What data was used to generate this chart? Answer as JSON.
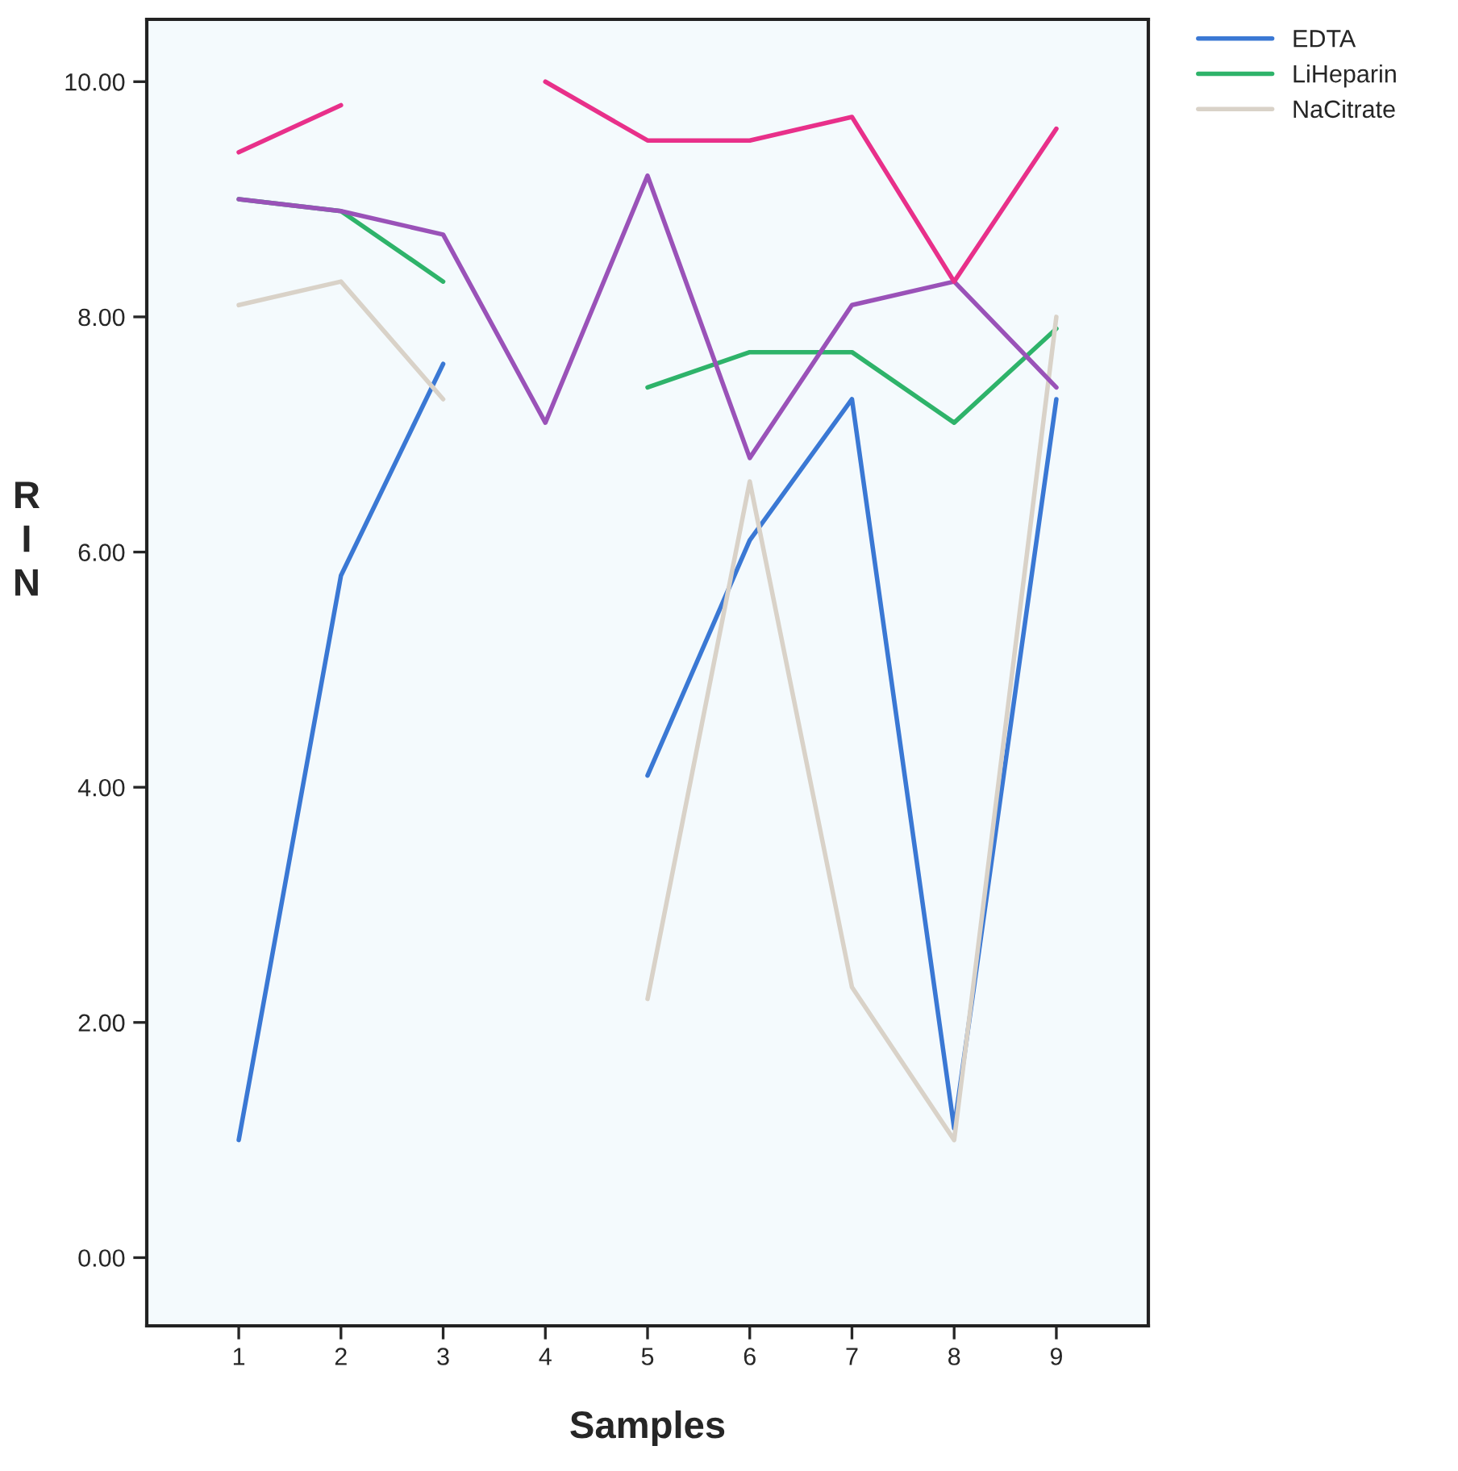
{
  "chart_data": {
    "type": "line",
    "xlabel": "Samples",
    "ylabel": "RIN",
    "categories": [
      "1",
      "2",
      "3",
      "4",
      "5",
      "6",
      "7",
      "8",
      "9"
    ],
    "series": [
      {
        "name": "EDTA",
        "color": "#3a78d4",
        "values": [
          1.0,
          5.8,
          7.6,
          null,
          4.1,
          6.1,
          7.3,
          1.1,
          7.3
        ]
      },
      {
        "name": "LiHeparin",
        "color": "#2eb36a",
        "values": [
          9.0,
          8.9,
          8.3,
          null,
          7.4,
          7.7,
          7.7,
          7.1,
          7.9
        ]
      },
      {
        "name": "NaCitrate",
        "color": "#d9d2c8",
        "values": [
          8.1,
          8.3,
          7.3,
          null,
          2.2,
          6.6,
          2.3,
          1.0,
          8.0
        ]
      },
      {
        "color": "#9a52b8",
        "values": [
          9.0,
          8.9,
          8.7,
          7.1,
          9.2,
          6.8,
          8.1,
          8.3,
          7.4
        ]
      },
      {
        "color": "#e8308a",
        "values": [
          9.4,
          9.8,
          null,
          10.0,
          9.5,
          9.5,
          9.7,
          8.3,
          9.6
        ]
      }
    ],
    "ylim": [
      -0.58,
      10.53
    ],
    "yticks": [
      {
        "value": 0,
        "label": "0.00"
      },
      {
        "value": 2,
        "label": "2.00"
      },
      {
        "value": 4,
        "label": "4.00"
      },
      {
        "value": 6,
        "label": "6.00"
      },
      {
        "value": 8,
        "label": "8.00"
      },
      {
        "value": 10,
        "label": "10.00"
      }
    ],
    "legend": "top right",
    "grid": false,
    "marker": "none",
    "line_style": "solid"
  }
}
